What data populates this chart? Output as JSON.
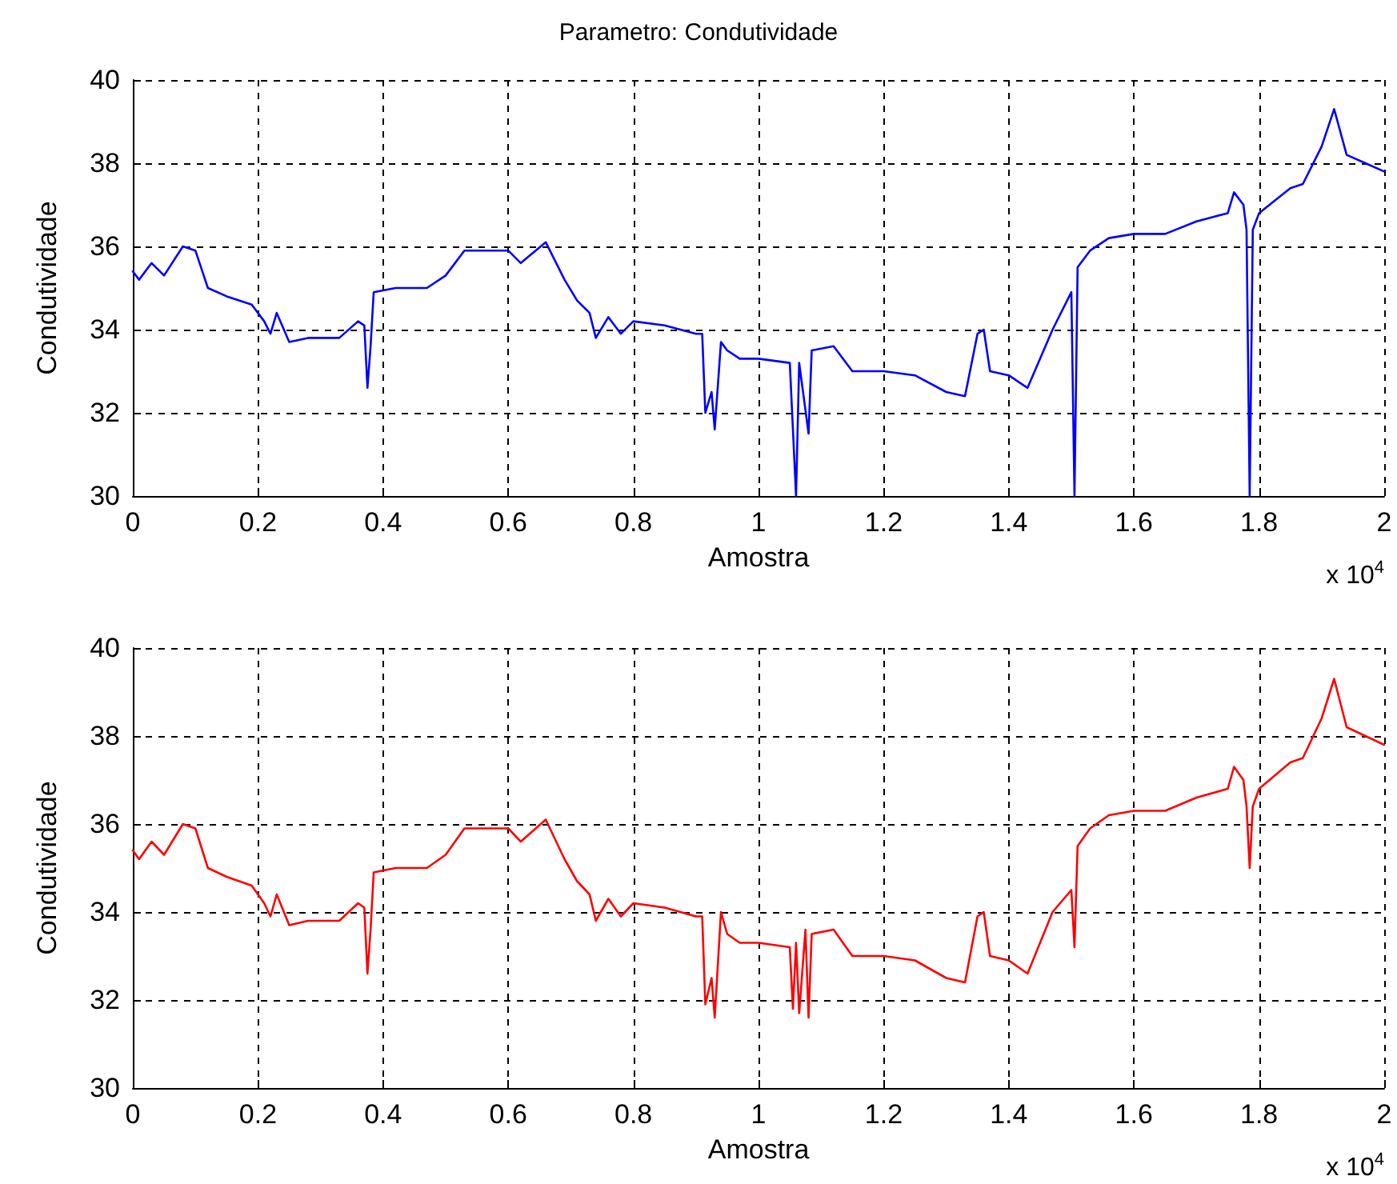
{
  "chart_data": [
    {
      "type": "line",
      "title": "Parametro: Condutividade",
      "xlabel": "Amostra",
      "ylabel": "Condutividade",
      "annotations": [
        "x 10$^{4}$"
      ],
      "xlim": [
        0,
        2
      ],
      "xticks": [
        0,
        0.2,
        0.4,
        0.6,
        0.8,
        1,
        1.2,
        1.4,
        1.6,
        1.8,
        2
      ],
      "ylim": [
        30,
        40
      ],
      "yticks": [
        30,
        32,
        34,
        36,
        38,
        40
      ],
      "grid": true,
      "marker": "none",
      "line_style": "solid",
      "series": [
        {
          "color": "#0000ff",
          "x": [
            0,
            0.01,
            0.03,
            0.05,
            0.08,
            0.1,
            0.12,
            0.15,
            0.19,
            0.21,
            0.22,
            0.23,
            0.25,
            0.28,
            0.33,
            0.36,
            0.37,
            0.375,
            0.38,
            0.385,
            0.42,
            0.47,
            0.5,
            0.53,
            0.6,
            0.62,
            0.66,
            0.69,
            0.71,
            0.73,
            0.74,
            0.76,
            0.78,
            0.8,
            0.85,
            0.9,
            0.91,
            0.915,
            0.925,
            0.93,
            0.94,
            0.95,
            0.97,
            1,
            1.05,
            1.06,
            1.065,
            1.08,
            1.085,
            1.12,
            1.15,
            1.2,
            1.25,
            1.3,
            1.33,
            1.35,
            1.36,
            1.37,
            1.4,
            1.43,
            1.47,
            1.5,
            1.505,
            1.51,
            1.53,
            1.56,
            1.6,
            1.65,
            1.7,
            1.75,
            1.76,
            1.775,
            1.78,
            1.785,
            1.79,
            1.8,
            1.85,
            1.87,
            1.9,
            1.92,
            1.94,
            1.97,
            2
          ],
          "values": [
            35.4,
            35.2,
            35.6,
            35.3,
            36,
            35.9,
            35,
            34.8,
            34.6,
            34.2,
            33.9,
            34.4,
            33.7,
            33.8,
            33.8,
            34.2,
            34.1,
            32.6,
            33.6,
            34.9,
            35,
            35,
            35.3,
            35.9,
            35.9,
            35.6,
            36.1,
            35.2,
            34.7,
            34.4,
            33.8,
            34.3,
            33.9,
            34.2,
            34.1,
            33.9,
            33.9,
            32,
            32.5,
            31.6,
            33.7,
            33.5,
            33.3,
            33.3,
            33.2,
            30,
            33.2,
            31.5,
            33.5,
            33.6,
            33,
            33,
            32.9,
            32.5,
            32.4,
            33.9,
            34,
            33,
            32.9,
            32.6,
            34,
            34.9,
            30,
            35.5,
            35.9,
            36.2,
            36.3,
            36.3,
            36.6,
            36.8,
            37.3,
            37,
            36.4,
            30,
            36.4,
            36.8,
            37.4,
            37.5,
            38.4,
            39.3,
            38.2,
            38,
            37.8
          ]
        }
      ]
    },
    {
      "type": "line",
      "xlabel": "Amostra",
      "ylabel": "Condutividade",
      "annotations": [
        "x 10$^{4}$"
      ],
      "xlim": [
        0,
        2
      ],
      "xticks": [
        0,
        0.2,
        0.4,
        0.6,
        0.8,
        1,
        1.2,
        1.4,
        1.6,
        1.8,
        2
      ],
      "ylim": [
        30,
        40
      ],
      "yticks": [
        30,
        32,
        34,
        36,
        38,
        40
      ],
      "grid": true,
      "marker": "none",
      "line_style": "solid",
      "series": [
        {
          "color": "#ff0000",
          "x": [
            0,
            0.01,
            0.03,
            0.05,
            0.08,
            0.1,
            0.12,
            0.15,
            0.19,
            0.21,
            0.22,
            0.23,
            0.25,
            0.28,
            0.33,
            0.36,
            0.37,
            0.375,
            0.38,
            0.385,
            0.42,
            0.47,
            0.5,
            0.53,
            0.6,
            0.62,
            0.66,
            0.69,
            0.71,
            0.73,
            0.74,
            0.76,
            0.78,
            0.8,
            0.85,
            0.9,
            0.91,
            0.915,
            0.925,
            0.93,
            0.94,
            0.95,
            0.97,
            1,
            1.05,
            1.055,
            1.06,
            1.065,
            1.075,
            1.08,
            1.085,
            1.12,
            1.15,
            1.2,
            1.25,
            1.3,
            1.33,
            1.35,
            1.36,
            1.37,
            1.4,
            1.43,
            1.47,
            1.5,
            1.505,
            1.51,
            1.53,
            1.56,
            1.6,
            1.65,
            1.7,
            1.75,
            1.76,
            1.775,
            1.78,
            1.785,
            1.79,
            1.8,
            1.85,
            1.87,
            1.9,
            1.92,
            1.94,
            1.97,
            2
          ],
          "values": [
            35.4,
            35.2,
            35.6,
            35.3,
            36,
            35.9,
            35,
            34.8,
            34.6,
            34.2,
            33.9,
            34.4,
            33.7,
            33.8,
            33.8,
            34.2,
            34.1,
            32.6,
            33.6,
            34.9,
            35,
            35,
            35.3,
            35.9,
            35.9,
            35.6,
            36.1,
            35.2,
            34.7,
            34.4,
            33.8,
            34.3,
            33.9,
            34.2,
            34.1,
            33.9,
            33.9,
            31.9,
            32.5,
            31.6,
            34,
            33.5,
            33.3,
            33.3,
            33.2,
            31.8,
            33.3,
            31.7,
            33.6,
            31.6,
            33.5,
            33.6,
            33,
            33,
            32.9,
            32.5,
            32.4,
            33.9,
            34,
            33,
            32.9,
            32.6,
            34,
            34.5,
            33.2,
            35.5,
            35.9,
            36.2,
            36.3,
            36.3,
            36.6,
            36.8,
            37.3,
            37,
            36.4,
            35,
            36.4,
            36.8,
            37.4,
            37.5,
            38.4,
            39.3,
            38.2,
            38,
            37.8
          ]
        }
      ]
    }
  ]
}
